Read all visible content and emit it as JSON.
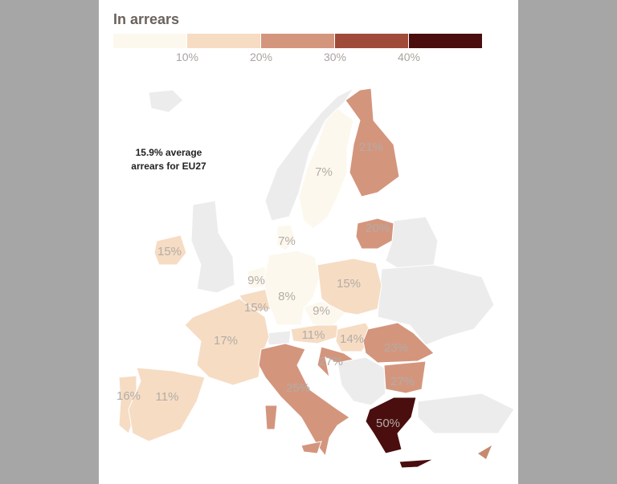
{
  "title": "In arrears",
  "legend": {
    "lim": [
      0,
      50
    ],
    "ticks": [
      {
        "value": 10,
        "label": "10%"
      },
      {
        "value": 20,
        "label": "20%"
      },
      {
        "value": 30,
        "label": "30%"
      },
      {
        "value": 40,
        "label": "40%"
      }
    ],
    "colors": [
      "#fdf8ee",
      "#f6dcc3",
      "#d4957d",
      "#a04a3a",
      "#4a0e0e"
    ]
  },
  "annotation": [
    "15.9% average",
    "arrears for EU27"
  ],
  "regions": [
    {
      "value": 21,
      "label": "21%"
    },
    {
      "value": 7,
      "label": "7%"
    },
    {
      "value": 20,
      "label": "20%"
    },
    {
      "value": 7,
      "label": "7%"
    },
    {
      "value": 15,
      "label": "15%"
    },
    {
      "value": 9,
      "label": "9%"
    },
    {
      "value": 15,
      "label": "15%"
    },
    {
      "value": 8,
      "label": "8%"
    },
    {
      "value": 15,
      "label": "15%"
    },
    {
      "value": 9,
      "label": "9%"
    },
    {
      "value": 17,
      "label": "17%"
    },
    {
      "value": 11,
      "label": "11%"
    },
    {
      "value": 14,
      "label": "14%"
    },
    {
      "value": 23,
      "label": "23%"
    },
    {
      "value": 27,
      "label": "27%"
    },
    {
      "value": 27,
      "label": "27%"
    },
    {
      "value": 25,
      "label": "25%"
    },
    {
      "value": 16,
      "label": "16%"
    },
    {
      "value": 11,
      "label": "11%"
    },
    {
      "value": 50,
      "label": "50%"
    }
  ]
}
